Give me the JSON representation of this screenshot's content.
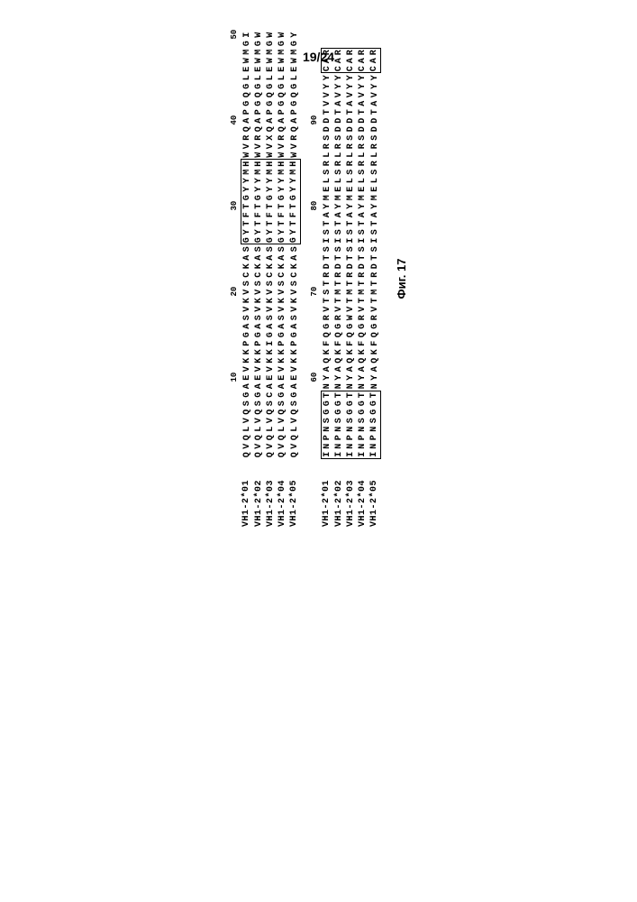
{
  "page_number": "19/24",
  "figure_caption": "Фиг. 17",
  "labels": [
    "VH1-2*01",
    "VH1-2*02",
    "VH1-2*03",
    "VH1-2*04",
    "VH1-2*05"
  ],
  "ruler_positions_block1": {
    "10": 9,
    "20": 19,
    "30": 29,
    "40": 39,
    "50": 49
  },
  "ruler_positions_block2": {
    "60": 9,
    "70": 19,
    "80": 29,
    "90": 39
  },
  "block1_sequences": [
    "QVQLVQSGAEVKKPGASVKVSCKASGYTFTGYYMHWVRQAPGQGLEWMGI",
    "QVQLVQSGAEVKKPGASVKVSCKASGYTFTGYYMHWVRQAPGQGLEWMGW",
    "QVQLVQSCAEVKKIGASVKVSCKASGYTFTGYYMHWVXQAPGQGLEWMGW",
    "QVQLVQSGAEVKKPGASVKVSCKASGYTFTGYYMHWVRQAPGQGLEWMGW",
    "QVQLVQSGAEVKKPGASVKVSCKASGYTFTGYYMHWVRQAPGQGLEWMGY"
  ],
  "block2_sequences": [
    "INPNSGGTNYAQKFQGRVTSTRDTSISTAYMELSRLRSDDTVVYYCAR",
    "INPNSGGTNYAQKFQGRVTMTRDTSISTAYMELSRLRSDDTAVYYCAR",
    "INPNSGGTNYAQKFQGWVTMTRDTSISTAYMELSRLRSDDTAVYYCAR",
    "INPNSGGTNYAQKFQGRVTMTRDTSISTAYMELSRLRSDDTAVYYCAR",
    "INPNSGGTNYAQKFQGRVTMTRDTSISTAYMELSRLRSDDTAVYYCAR"
  ],
  "box1_range": [
    25,
    34
  ],
  "box2_range": [
    0,
    7
  ],
  "box3_range": [
    45,
    47
  ],
  "colors": {
    "background": "#ffffff",
    "text": "#000000",
    "border": "#000000"
  },
  "font_main": "Courier New",
  "font_label": "Arial"
}
